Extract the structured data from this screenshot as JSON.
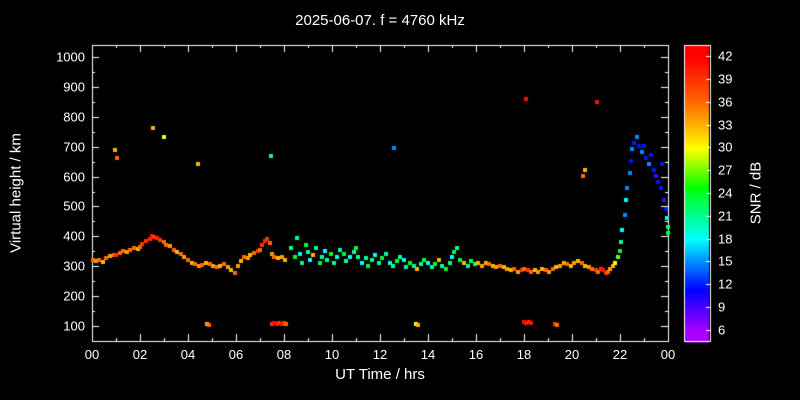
{
  "chart_data": {
    "type": "scatter",
    "title": "2025-06-07. f = 4760 kHz",
    "xlabel": "UT Time / hrs",
    "ylabel": "Virtual height / km",
    "background": "#000000",
    "foreground": "#ffffff",
    "grid": false,
    "xlim": [
      0,
      24
    ],
    "ylim": [
      50,
      1040
    ],
    "x_tick_pos": [
      0,
      2,
      4,
      6,
      8,
      10,
      12,
      14,
      16,
      18,
      20,
      22,
      24
    ],
    "x_tick_labels": [
      "00",
      "02",
      "04",
      "06",
      "08",
      "10",
      "12",
      "14",
      "16",
      "18",
      "20",
      "22",
      "00"
    ],
    "y_tick_pos": [
      100,
      200,
      300,
      400,
      500,
      600,
      700,
      800,
      900,
      1000
    ],
    "y_tick_labels": [
      "100",
      "200",
      "300",
      "400",
      "500",
      "600",
      "700",
      "800",
      "900",
      "1000"
    ],
    "colorbar": {
      "label": "SNR / dB",
      "min": 4.5,
      "max": 43.5,
      "ticks": [
        6,
        9,
        12,
        15,
        18,
        21,
        24,
        27,
        30,
        33,
        36,
        39,
        42
      ],
      "tick_labels": [
        "6",
        "9",
        "12",
        "15",
        "18",
        "21",
        "24",
        "27",
        "30",
        "33",
        "36",
        "39",
        "42"
      ],
      "hue_stops": [
        [
          6,
          280
        ],
        [
          12,
          235
        ],
        [
          18,
          180
        ],
        [
          24,
          130
        ],
        [
          30,
          60
        ],
        [
          36,
          25
        ],
        [
          42,
          0
        ]
      ]
    },
    "points": [
      [
        0.05,
        320,
        36
      ],
      [
        0.15,
        318,
        34
      ],
      [
        0.3,
        322,
        36
      ],
      [
        0.45,
        315,
        33
      ],
      [
        0.6,
        328,
        36
      ],
      [
        0.75,
        335,
        34
      ],
      [
        0.9,
        338,
        36
      ],
      [
        1.0,
        336,
        39
      ],
      [
        1.15,
        345,
        36
      ],
      [
        1.3,
        350,
        36
      ],
      [
        1.45,
        348,
        34
      ],
      [
        1.6,
        355,
        36
      ],
      [
        1.75,
        362,
        36
      ],
      [
        1.9,
        358,
        33
      ],
      [
        2.0,
        366,
        36
      ],
      [
        2.1,
        375,
        39
      ],
      [
        2.25,
        385,
        39
      ],
      [
        2.4,
        392,
        40
      ],
      [
        2.5,
        400,
        41
      ],
      [
        2.6,
        398,
        39
      ],
      [
        2.7,
        396,
        40
      ],
      [
        2.85,
        388,
        39
      ],
      [
        3.0,
        380,
        36
      ],
      [
        3.1,
        372,
        36
      ],
      [
        3.25,
        368,
        34
      ],
      [
        3.4,
        356,
        36
      ],
      [
        3.55,
        346,
        33
      ],
      [
        3.7,
        340,
        36
      ],
      [
        3.85,
        331,
        34
      ],
      [
        4.0,
        322,
        36
      ],
      [
        4.15,
        312,
        33
      ],
      [
        4.3,
        306,
        36
      ],
      [
        4.45,
        300,
        34
      ],
      [
        4.6,
        305,
        36
      ],
      [
        4.75,
        311,
        33
      ],
      [
        4.9,
        306,
        36
      ],
      [
        5.05,
        300,
        34
      ],
      [
        5.2,
        296,
        36
      ],
      [
        5.35,
        301,
        33
      ],
      [
        5.5,
        306,
        36
      ],
      [
        5.65,
        298,
        34
      ],
      [
        5.8,
        286,
        33
      ],
      [
        5.95,
        279,
        36
      ],
      [
        6.1,
        300,
        34
      ],
      [
        6.2,
        318,
        33
      ],
      [
        6.35,
        330,
        36
      ],
      [
        6.5,
        326,
        34
      ],
      [
        6.6,
        336,
        33
      ],
      [
        6.75,
        344,
        36
      ],
      [
        6.9,
        350,
        39
      ],
      [
        7.0,
        356,
        36
      ],
      [
        7.1,
        370,
        39
      ],
      [
        7.2,
        386,
        40
      ],
      [
        7.3,
        392,
        39
      ],
      [
        7.4,
        379,
        36
      ],
      [
        7.5,
        341,
        34
      ],
      [
        7.6,
        331,
        36
      ],
      [
        7.75,
        326,
        33
      ],
      [
        7.9,
        331,
        34
      ],
      [
        8.05,
        321,
        33
      ],
      [
        8.3,
        362,
        21
      ],
      [
        8.45,
        331,
        24
      ],
      [
        8.55,
        396,
        21
      ],
      [
        8.65,
        341,
        18
      ],
      [
        8.75,
        311,
        21
      ],
      [
        8.9,
        371,
        24
      ],
      [
        9.0,
        346,
        21
      ],
      [
        9.1,
        321,
        18
      ],
      [
        9.2,
        336,
        33
      ],
      [
        9.35,
        361,
        21
      ],
      [
        9.5,
        311,
        24
      ],
      [
        9.6,
        331,
        21
      ],
      [
        9.7,
        351,
        18
      ],
      [
        9.8,
        321,
        21
      ],
      [
        9.95,
        341,
        24
      ],
      [
        10.1,
        311,
        21
      ],
      [
        10.2,
        331,
        18
      ],
      [
        10.35,
        356,
        21
      ],
      [
        10.5,
        341,
        24
      ],
      [
        10.6,
        316,
        21
      ],
      [
        10.75,
        331,
        18
      ],
      [
        10.9,
        346,
        21
      ],
      [
        11.0,
        361,
        24
      ],
      [
        11.1,
        331,
        21
      ],
      [
        11.25,
        311,
        18
      ],
      [
        11.4,
        326,
        21
      ],
      [
        11.5,
        301,
        24
      ],
      [
        11.65,
        321,
        21
      ],
      [
        11.8,
        336,
        18
      ],
      [
        11.95,
        311,
        21
      ],
      [
        12.1,
        326,
        24
      ],
      [
        12.25,
        341,
        21
      ],
      [
        12.4,
        311,
        18
      ],
      [
        12.55,
        301,
        21
      ],
      [
        12.7,
        316,
        24
      ],
      [
        12.85,
        331,
        21
      ],
      [
        13.0,
        321,
        18
      ],
      [
        13.1,
        296,
        21
      ],
      [
        13.25,
        311,
        24
      ],
      [
        13.4,
        301,
        21
      ],
      [
        13.55,
        291,
        33
      ],
      [
        13.7,
        306,
        21
      ],
      [
        13.85,
        321,
        24
      ],
      [
        14.0,
        311,
        18
      ],
      [
        14.15,
        296,
        21
      ],
      [
        14.3,
        306,
        24
      ],
      [
        14.45,
        321,
        33
      ],
      [
        14.6,
        301,
        21
      ],
      [
        14.75,
        291,
        24
      ],
      [
        14.9,
        311,
        21
      ],
      [
        15.0,
        331,
        18
      ],
      [
        15.1,
        346,
        24
      ],
      [
        15.2,
        361,
        21
      ],
      [
        15.35,
        321,
        24
      ],
      [
        15.5,
        311,
        33
      ],
      [
        15.65,
        301,
        21
      ],
      [
        15.8,
        316,
        24
      ],
      [
        15.95,
        306,
        21
      ],
      [
        16.1,
        311,
        33
      ],
      [
        16.25,
        301,
        34
      ],
      [
        16.4,
        311,
        33
      ],
      [
        16.55,
        306,
        36
      ],
      [
        16.7,
        301,
        33
      ],
      [
        16.85,
        296,
        34
      ],
      [
        17.0,
        301,
        36
      ],
      [
        17.15,
        296,
        33
      ],
      [
        17.3,
        291,
        34
      ],
      [
        17.45,
        286,
        33
      ],
      [
        17.6,
        291,
        36
      ],
      [
        17.75,
        281,
        34
      ],
      [
        17.9,
        286,
        39
      ],
      [
        18.0,
        291,
        36
      ],
      [
        18.15,
        286,
        39
      ],
      [
        18.3,
        281,
        36
      ],
      [
        18.45,
        286,
        33
      ],
      [
        18.6,
        281,
        34
      ],
      [
        18.75,
        291,
        33
      ],
      [
        18.9,
        286,
        36
      ],
      [
        19.05,
        281,
        34
      ],
      [
        19.2,
        291,
        36
      ],
      [
        19.35,
        296,
        33
      ],
      [
        19.5,
        301,
        34
      ],
      [
        19.65,
        311,
        33
      ],
      [
        19.8,
        306,
        36
      ],
      [
        19.95,
        301,
        33
      ],
      [
        20.1,
        311,
        34
      ],
      [
        20.25,
        316,
        33
      ],
      [
        20.4,
        311,
        36
      ],
      [
        20.55,
        301,
        33
      ],
      [
        20.7,
        296,
        34
      ],
      [
        20.85,
        291,
        36
      ],
      [
        21.0,
        286,
        39
      ],
      [
        21.1,
        281,
        36
      ],
      [
        21.2,
        291,
        39
      ],
      [
        21.3,
        286,
        41
      ],
      [
        21.4,
        276,
        39
      ],
      [
        21.5,
        281,
        36
      ],
      [
        21.6,
        291,
        34
      ],
      [
        21.7,
        301,
        33
      ],
      [
        21.8,
        311,
        30
      ],
      [
        21.9,
        331,
        27
      ],
      [
        22.0,
        351,
        24
      ],
      [
        22.05,
        381,
        21
      ],
      [
        22.1,
        421,
        18
      ],
      [
        22.2,
        471,
        15
      ],
      [
        22.25,
        521,
        18
      ],
      [
        22.3,
        561,
        15
      ],
      [
        22.4,
        611,
        15
      ],
      [
        22.45,
        651,
        12
      ],
      [
        22.5,
        691,
        15
      ],
      [
        22.6,
        711,
        12
      ],
      [
        22.7,
        731,
        15
      ],
      [
        22.8,
        701,
        12
      ],
      [
        22.9,
        681,
        15
      ],
      [
        23.0,
        701,
        12
      ],
      [
        23.1,
        661,
        12
      ],
      [
        23.2,
        641,
        15
      ],
      [
        23.3,
        671,
        12
      ],
      [
        23.4,
        621,
        12
      ],
      [
        23.5,
        601,
        9
      ],
      [
        23.6,
        581,
        12
      ],
      [
        23.7,
        561,
        12
      ],
      [
        23.75,
        641,
        12
      ],
      [
        23.85,
        521,
        9
      ],
      [
        23.9,
        491,
        12
      ],
      [
        23.95,
        461,
        18
      ],
      [
        23.98,
        431,
        21
      ],
      [
        24.0,
        411,
        24
      ],
      [
        0.95,
        690,
        33
      ],
      [
        1.05,
        662,
        36
      ],
      [
        2.55,
        764,
        33
      ],
      [
        3.0,
        731,
        30
      ],
      [
        4.4,
        641,
        33
      ],
      [
        7.45,
        669,
        21
      ],
      [
        12.6,
        696,
        15
      ],
      [
        18.1,
        861,
        41
      ],
      [
        21.05,
        849,
        41
      ],
      [
        20.45,
        601,
        36
      ],
      [
        20.55,
        621,
        33
      ],
      [
        4.8,
        106,
        33
      ],
      [
        4.88,
        103,
        36
      ],
      [
        7.5,
        108,
        39
      ],
      [
        7.6,
        110,
        41
      ],
      [
        7.7,
        108,
        41
      ],
      [
        7.8,
        110,
        39
      ],
      [
        7.9,
        108,
        41
      ],
      [
        8.0,
        110,
        39
      ],
      [
        8.1,
        108,
        36
      ],
      [
        13.5,
        106,
        30
      ],
      [
        13.58,
        103,
        33
      ],
      [
        18.0,
        113,
        41
      ],
      [
        18.1,
        111,
        41
      ],
      [
        18.2,
        113,
        39
      ],
      [
        18.3,
        111,
        41
      ],
      [
        19.3,
        108,
        39
      ],
      [
        19.38,
        105,
        36
      ]
    ]
  }
}
